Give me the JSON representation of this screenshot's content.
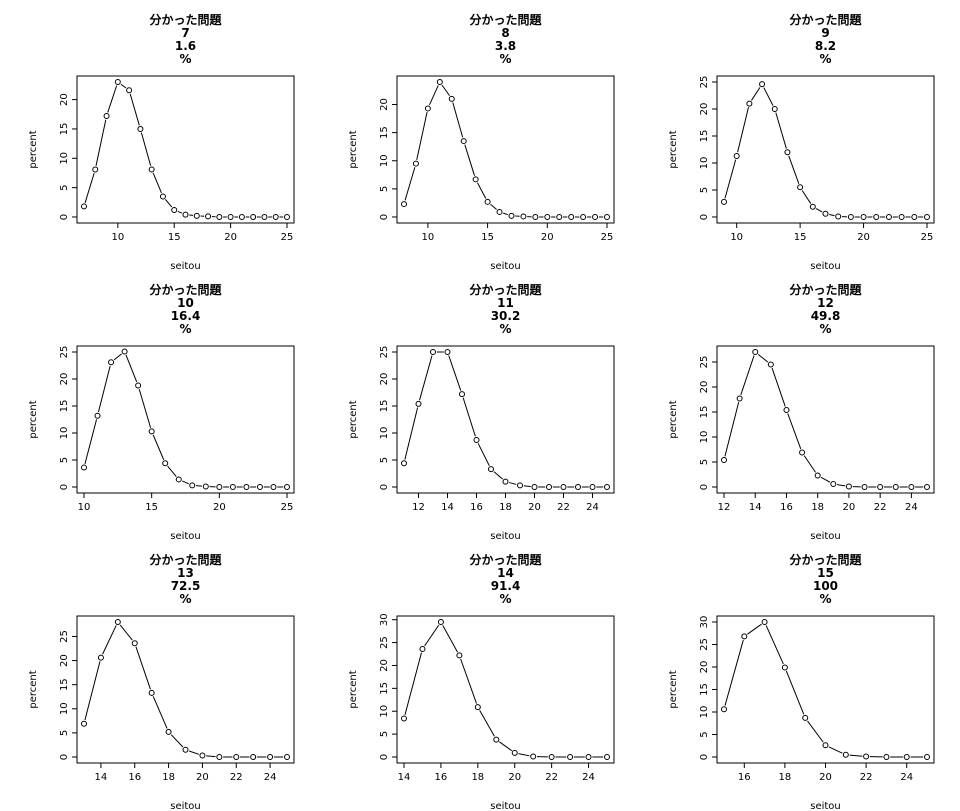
{
  "chart_data": [
    {
      "type": "line",
      "title_lines": [
        "分かった問題",
        "7",
        "1.6",
        "%"
      ],
      "xlabel": "seitou",
      "ylabel": "percent",
      "xlim": [
        7,
        25
      ],
      "ylim": [
        0,
        23
      ],
      "xticks": [
        10,
        15,
        20,
        25
      ],
      "yticks": [
        0,
        5,
        10,
        15,
        20
      ],
      "x": [
        7,
        8,
        9,
        10,
        11,
        12,
        13,
        14,
        15,
        16,
        17,
        18,
        19,
        20,
        21,
        22,
        23,
        24,
        25
      ],
      "y": [
        1.8,
        8.1,
        17.2,
        23,
        21.6,
        15,
        8.1,
        3.5,
        1.2,
        0.4,
        0.2,
        0.1,
        0,
        0,
        0,
        0,
        0,
        0,
        0
      ]
    },
    {
      "type": "line",
      "title_lines": [
        "分かった問題",
        "8",
        "3.8",
        "%"
      ],
      "xlabel": "seitou",
      "ylabel": "percent",
      "xlim": [
        8,
        25
      ],
      "ylim": [
        0,
        24
      ],
      "xticks": [
        10,
        15,
        20,
        25
      ],
      "yticks": [
        0,
        5,
        10,
        15,
        20
      ],
      "x": [
        8,
        9,
        10,
        11,
        12,
        13,
        14,
        15,
        16,
        17,
        18,
        19,
        20,
        21,
        22,
        23,
        24,
        25
      ],
      "y": [
        2.3,
        9.5,
        19.3,
        24,
        21,
        13.5,
        6.7,
        2.7,
        0.9,
        0.2,
        0.1,
        0,
        0,
        0,
        0,
        0,
        0,
        0
      ]
    },
    {
      "type": "line",
      "title_lines": [
        "分かった問題",
        "9",
        "8.2",
        "%"
      ],
      "xlabel": "seitou",
      "ylabel": "percent",
      "xlim": [
        9,
        25
      ],
      "ylim": [
        0,
        25
      ],
      "xticks": [
        10,
        15,
        20,
        25
      ],
      "yticks": [
        0,
        5,
        10,
        15,
        20,
        25
      ],
      "x": [
        9,
        10,
        11,
        12,
        13,
        14,
        15,
        16,
        17,
        18,
        19,
        20,
        21,
        22,
        23,
        24,
        25
      ],
      "y": [
        2.8,
        11.3,
        21,
        24.6,
        20,
        12,
        5.5,
        1.9,
        0.6,
        0.1,
        0,
        0,
        0,
        0,
        0,
        0,
        0
      ]
    },
    {
      "type": "line",
      "title_lines": [
        "分かった問題",
        "10",
        "16.4",
        "%"
      ],
      "xlabel": "seitou",
      "ylabel": "percent",
      "xlim": [
        10,
        25
      ],
      "ylim": [
        0,
        25
      ],
      "xticks": [
        10,
        15,
        20,
        25
      ],
      "yticks": [
        0,
        5,
        10,
        15,
        20,
        25
      ],
      "x": [
        10,
        11,
        12,
        13,
        14,
        15,
        16,
        17,
        18,
        19,
        20,
        21,
        22,
        23,
        24,
        25
      ],
      "y": [
        3.6,
        13.2,
        23.1,
        25.1,
        18.8,
        10.3,
        4.4,
        1.4,
        0.3,
        0.1,
        0,
        0,
        0,
        0,
        0,
        0
      ]
    },
    {
      "type": "line",
      "title_lines": [
        "分かった問題",
        "11",
        "30.2",
        "%"
      ],
      "xlabel": "seitou",
      "ylabel": "percent",
      "xlim": [
        11,
        25
      ],
      "ylim": [
        0,
        25
      ],
      "xticks": [
        12,
        14,
        16,
        18,
        20,
        22,
        24
      ],
      "yticks": [
        0,
        5,
        10,
        15,
        20,
        25
      ],
      "x": [
        11,
        12,
        13,
        14,
        15,
        16,
        17,
        18,
        19,
        20,
        21,
        22,
        23,
        24,
        25
      ],
      "y": [
        4.4,
        15.4,
        25,
        25,
        17.2,
        8.7,
        3.3,
        1,
        0.3,
        0,
        0,
        0,
        0,
        0,
        0
      ]
    },
    {
      "type": "line",
      "title_lines": [
        "分かった問題",
        "12",
        "49.8",
        "%"
      ],
      "xlabel": "seitou",
      "ylabel": "percent",
      "xlim": [
        12,
        25
      ],
      "ylim": [
        0,
        27
      ],
      "xticks": [
        12,
        14,
        16,
        18,
        20,
        22,
        24
      ],
      "yticks": [
        0,
        5,
        10,
        15,
        20,
        25
      ],
      "x": [
        12,
        13,
        14,
        15,
        16,
        17,
        18,
        19,
        20,
        21,
        22,
        23,
        24,
        25
      ],
      "y": [
        5.4,
        17.7,
        27,
        24.5,
        15.4,
        6.9,
        2.3,
        0.6,
        0.1,
        0,
        0,
        0,
        0,
        0
      ]
    },
    {
      "type": "line",
      "title_lines": [
        "分かった問題",
        "13",
        "72.5",
        "%"
      ],
      "xlabel": "seitou",
      "ylabel": "percent",
      "xlim": [
        13,
        25
      ],
      "ylim": [
        0,
        28
      ],
      "xticks": [
        14,
        16,
        18,
        20,
        22,
        24
      ],
      "yticks": [
        0,
        5,
        10,
        15,
        20,
        25
      ],
      "x": [
        13,
        14,
        15,
        16,
        17,
        18,
        19,
        20,
        21,
        22,
        23,
        24,
        25
      ],
      "y": [
        6.9,
        20.6,
        28,
        23.6,
        13.3,
        5.2,
        1.5,
        0.3,
        0,
        0,
        0,
        0,
        0
      ]
    },
    {
      "type": "line",
      "title_lines": [
        "分かった問題",
        "14",
        "91.4",
        "%"
      ],
      "xlabel": "seitou",
      "ylabel": "percent",
      "xlim": [
        14,
        25
      ],
      "ylim": [
        0,
        29.5
      ],
      "xticks": [
        14,
        16,
        18,
        20,
        22,
        24
      ],
      "yticks": [
        0,
        5,
        10,
        15,
        20,
        25,
        30
      ],
      "x": [
        14,
        15,
        16,
        17,
        18,
        19,
        20,
        21,
        22,
        23,
        24,
        25
      ],
      "y": [
        8.4,
        23.6,
        29.5,
        22.2,
        10.9,
        3.8,
        0.9,
        0.1,
        0,
        0,
        0,
        0
      ]
    },
    {
      "type": "line",
      "title_lines": [
        "分かった問題",
        "15",
        "100",
        "%"
      ],
      "xlabel": "seitou",
      "ylabel": "percent",
      "xlim": [
        15,
        25
      ],
      "ylim": [
        0,
        30
      ],
      "xticks": [
        16,
        18,
        20,
        22,
        24
      ],
      "yticks": [
        0,
        5,
        10,
        15,
        20,
        25,
        30
      ],
      "x": [
        15,
        16,
        17,
        18,
        19,
        20,
        21,
        22,
        23,
        24,
        25
      ],
      "y": [
        10.6,
        26.8,
        30,
        19.9,
        8.7,
        2.6,
        0.5,
        0.1,
        0,
        0,
        0
      ]
    }
  ]
}
